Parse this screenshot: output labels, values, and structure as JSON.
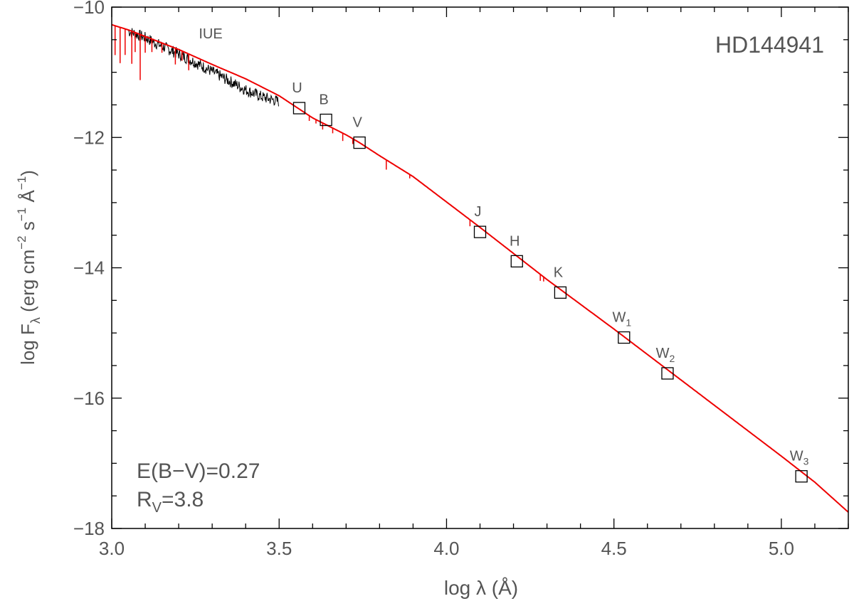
{
  "chart_data": {
    "type": "line",
    "title": "HD144941",
    "xlabel": "log λ (Å)",
    "ylabel_parts": {
      "base": "log F",
      "sub": "λ",
      "units_open": " (erg cm",
      "exp_cm": "−2",
      "s_part": " s",
      "exp_s": "−1",
      "angstrom": " Å",
      "exp_a": "−1",
      "close": ")"
    },
    "xlim": [
      3.0,
      5.2
    ],
    "ylim": [
      -18.0,
      -10.0
    ],
    "xticks": [
      {
        "value": 3.0,
        "label": "3.0"
      },
      {
        "value": 3.5,
        "label": "3.5"
      },
      {
        "value": 4.0,
        "label": "4.0"
      },
      {
        "value": 4.5,
        "label": "4.5"
      },
      {
        "value": 5.0,
        "label": "5.0"
      }
    ],
    "yticks": [
      {
        "value": -10,
        "label": "−10"
      },
      {
        "value": -12,
        "label": "−12"
      },
      {
        "value": -14,
        "label": "−14"
      },
      {
        "value": -16,
        "label": "−16"
      },
      {
        "value": -18,
        "label": "−18"
      }
    ],
    "x_minor_step": 0.1,
    "y_minor_step": 0.5,
    "grid": false,
    "colors": {
      "model": "#ee0000",
      "iue": "#000000",
      "frame": "#000000",
      "text": "#555555"
    },
    "series": [
      {
        "kind": "model",
        "x": [
          3.0,
          3.05,
          3.1,
          3.2,
          3.3,
          3.4,
          3.5,
          3.6,
          3.7,
          3.74,
          3.8,
          3.9,
          4.0,
          4.1,
          4.2,
          4.3,
          4.4,
          4.5,
          4.6,
          4.7,
          4.8,
          4.9,
          5.0,
          5.1,
          5.2
        ],
        "y": [
          -10.27,
          -10.35,
          -10.45,
          -10.65,
          -10.88,
          -11.1,
          -11.36,
          -11.7,
          -11.96,
          -12.08,
          -12.28,
          -12.6,
          -12.99,
          -13.38,
          -13.78,
          -14.18,
          -14.56,
          -14.94,
          -15.33,
          -15.72,
          -16.11,
          -16.5,
          -16.89,
          -17.29,
          -17.75
        ],
        "absorption_lines": [
          {
            "x": 3.01,
            "depth": 0.45
          },
          {
            "x": 3.025,
            "depth": 0.55
          },
          {
            "x": 3.04,
            "depth": 0.4
          },
          {
            "x": 3.06,
            "depth": 0.5
          },
          {
            "x": 3.07,
            "depth": 0.3
          },
          {
            "x": 3.085,
            "depth": 0.7
          },
          {
            "x": 3.1,
            "depth": 0.25
          },
          {
            "x": 3.12,
            "depth": 0.2
          },
          {
            "x": 3.15,
            "depth": 0.15
          },
          {
            "x": 3.19,
            "depth": 0.25
          },
          {
            "x": 3.21,
            "depth": 0.15
          },
          {
            "x": 3.23,
            "depth": 0.25
          },
          {
            "x": 3.59,
            "depth": 0.08
          },
          {
            "x": 3.61,
            "depth": 0.06
          },
          {
            "x": 3.63,
            "depth": 0.1
          },
          {
            "x": 3.66,
            "depth": 0.08
          },
          {
            "x": 3.69,
            "depth": 0.12
          },
          {
            "x": 3.72,
            "depth": 0.08
          },
          {
            "x": 3.82,
            "depth": 0.15
          },
          {
            "x": 3.89,
            "depth": 0.06
          },
          {
            "x": 4.07,
            "depth": 0.1
          },
          {
            "x": 4.28,
            "depth": 0.1
          },
          {
            "x": 4.29,
            "depth": 0.07
          }
        ]
      },
      {
        "kind": "iue",
        "label": "IUE",
        "x": [
          3.05,
          3.1,
          3.15,
          3.2,
          3.25,
          3.3,
          3.35,
          3.4,
          3.45,
          3.5
        ],
        "y": [
          -10.37,
          -10.47,
          -10.6,
          -10.72,
          -10.85,
          -10.99,
          -11.13,
          -11.27,
          -11.38,
          -11.45
        ],
        "noise": 0.09
      }
    ],
    "photometry": [
      {
        "band": "U",
        "sub": "",
        "x": 3.56,
        "y": -11.55
      },
      {
        "band": "B",
        "sub": "",
        "x": 3.64,
        "y": -11.73
      },
      {
        "band": "V",
        "sub": "",
        "x": 3.74,
        "y": -12.08
      },
      {
        "band": "J",
        "sub": "",
        "x": 4.1,
        "y": -13.45
      },
      {
        "band": "H",
        "sub": "",
        "x": 4.21,
        "y": -13.9
      },
      {
        "band": "K",
        "sub": "",
        "x": 4.34,
        "y": -14.38
      },
      {
        "band": "W",
        "sub": "1",
        "x": 4.53,
        "y": -15.07
      },
      {
        "band": "W",
        "sub": "2",
        "x": 4.66,
        "y": -15.62
      },
      {
        "band": "W",
        "sub": "3",
        "x": 5.06,
        "y": -17.2
      }
    ],
    "annotations": {
      "ebv": "E(B−V)=0.27",
      "rv_base": "R",
      "rv_sub": "V",
      "rv_value": "=3.8"
    }
  }
}
